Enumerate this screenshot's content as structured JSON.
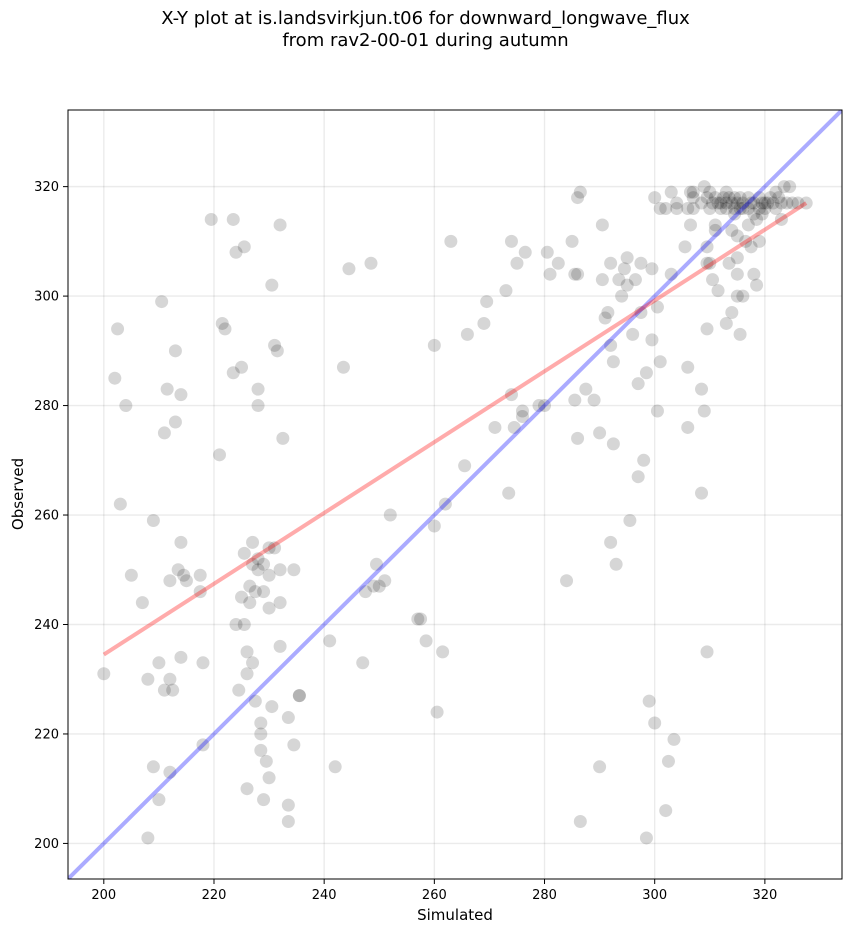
{
  "chart_data": {
    "type": "scatter",
    "title_line1": "X-Y plot at is.landsvirkjun.t06 for downward_longwave_flux",
    "title_line2": "from rav2-00-01 during autumn",
    "xlabel": "Simulated",
    "ylabel": "Observed",
    "xlim": [
      193.5,
      334
    ],
    "ylim": [
      193.5,
      334
    ],
    "xticks": [
      200,
      220,
      240,
      260,
      280,
      300,
      320
    ],
    "yticks": [
      200,
      220,
      240,
      260,
      280,
      300,
      320
    ],
    "grid": true,
    "colors": {
      "points": "#000000",
      "regression": "#ff0000",
      "one_to_one": "#0000ff"
    },
    "regression_line": {
      "x": [
        200,
        327.5
      ],
      "y": [
        234.5,
        317
      ]
    },
    "one_to_one_line": {
      "x": [
        193.5,
        334
      ],
      "y": [
        193.5,
        334
      ]
    },
    "points": [
      [
        200,
        231
      ],
      [
        202,
        285
      ],
      [
        202.5,
        294
      ],
      [
        203,
        262
      ],
      [
        204,
        280
      ],
      [
        205,
        249
      ],
      [
        207,
        244
      ],
      [
        208,
        230
      ],
      [
        208,
        201
      ],
      [
        209,
        259
      ],
      [
        209,
        214
      ],
      [
        210,
        233
      ],
      [
        210,
        208
      ],
      [
        210.5,
        299
      ],
      [
        211,
        228
      ],
      [
        211,
        275
      ],
      [
        211.5,
        283
      ],
      [
        212,
        230
      ],
      [
        212,
        213
      ],
      [
        212,
        248
      ],
      [
        212.5,
        228
      ],
      [
        213,
        290
      ],
      [
        213,
        277
      ],
      [
        213.5,
        250
      ],
      [
        214,
        282
      ],
      [
        214,
        255
      ],
      [
        214,
        234
      ],
      [
        214.5,
        249
      ],
      [
        215,
        248
      ],
      [
        217.5,
        246
      ],
      [
        217.5,
        249
      ],
      [
        218,
        233
      ],
      [
        218,
        218
      ],
      [
        219.5,
        314
      ],
      [
        221,
        271
      ],
      [
        221.5,
        295
      ],
      [
        222,
        294
      ],
      [
        223.5,
        286
      ],
      [
        223.5,
        314
      ],
      [
        224,
        240
      ],
      [
        224,
        308
      ],
      [
        224.5,
        228
      ],
      [
        225,
        287
      ],
      [
        225,
        245
      ],
      [
        225.5,
        253
      ],
      [
        225.5,
        240
      ],
      [
        225.5,
        309
      ],
      [
        226,
        231
      ],
      [
        226,
        235
      ],
      [
        226,
        210
      ],
      [
        226.5,
        244
      ],
      [
        226.5,
        247
      ],
      [
        227,
        251
      ],
      [
        227,
        255
      ],
      [
        227,
        233
      ],
      [
        227.5,
        246
      ],
      [
        227.5,
        226
      ],
      [
        228,
        250
      ],
      [
        228,
        252
      ],
      [
        228,
        283
      ],
      [
        228,
        280
      ],
      [
        228.5,
        222
      ],
      [
        228.5,
        220
      ],
      [
        228.5,
        217
      ],
      [
        229,
        246
      ],
      [
        229,
        208
      ],
      [
        229,
        251
      ],
      [
        229.5,
        215
      ],
      [
        230,
        212
      ],
      [
        230,
        249
      ],
      [
        230,
        243
      ],
      [
        230,
        254
      ],
      [
        230.5,
        302
      ],
      [
        230.5,
        225
      ],
      [
        231,
        291
      ],
      [
        231,
        254
      ],
      [
        231.5,
        290
      ],
      [
        232,
        250
      ],
      [
        232,
        244
      ],
      [
        232,
        236
      ],
      [
        232,
        313
      ],
      [
        232.5,
        274
      ],
      [
        233.5,
        223
      ],
      [
        233.5,
        207
      ],
      [
        233.5,
        204
      ],
      [
        234.5,
        250
      ],
      [
        234.5,
        218
      ],
      [
        235.5,
        227
      ],
      [
        235.5,
        227
      ],
      [
        241,
        237
      ],
      [
        242,
        214
      ],
      [
        243.5,
        287
      ],
      [
        244.5,
        305
      ],
      [
        247,
        233
      ],
      [
        247.5,
        246
      ],
      [
        248.5,
        306
      ],
      [
        249,
        247
      ],
      [
        249.5,
        251
      ],
      [
        250,
        247
      ],
      [
        251,
        248
      ],
      [
        252,
        260
      ],
      [
        257,
        241
      ],
      [
        257.5,
        241
      ],
      [
        258.5,
        237
      ],
      [
        260,
        291
      ],
      [
        260,
        258
      ],
      [
        260.5,
        224
      ],
      [
        261.5,
        235
      ],
      [
        262,
        262
      ],
      [
        263,
        310
      ],
      [
        265.5,
        269
      ],
      [
        266,
        293
      ],
      [
        269,
        295
      ],
      [
        269.5,
        299
      ],
      [
        271,
        276
      ],
      [
        273,
        301
      ],
      [
        273.5,
        264
      ],
      [
        274,
        310
      ],
      [
        274,
        282
      ],
      [
        274.5,
        276
      ],
      [
        275,
        306
      ],
      [
        276,
        278
      ],
      [
        276,
        279
      ],
      [
        276.5,
        308
      ],
      [
        279,
        280
      ],
      [
        280,
        280
      ],
      [
        280.5,
        308
      ],
      [
        281,
        304
      ],
      [
        282.5,
        306
      ],
      [
        284,
        248
      ],
      [
        285,
        310
      ],
      [
        285.5,
        281
      ],
      [
        285.5,
        304
      ],
      [
        286,
        274
      ],
      [
        286,
        304
      ],
      [
        286,
        318
      ],
      [
        286.5,
        319
      ],
      [
        286.5,
        204
      ],
      [
        287.5,
        283
      ],
      [
        289,
        281
      ],
      [
        290,
        275
      ],
      [
        290,
        214
      ],
      [
        290.5,
        313
      ],
      [
        290.5,
        303
      ],
      [
        291,
        296
      ],
      [
        291.5,
        297
      ],
      [
        292,
        255
      ],
      [
        292,
        306
      ],
      [
        292,
        291
      ],
      [
        292.5,
        288
      ],
      [
        292.5,
        273
      ],
      [
        293,
        251
      ],
      [
        293.5,
        303
      ],
      [
        294,
        300
      ],
      [
        294.5,
        305
      ],
      [
        295,
        307
      ],
      [
        295,
        302
      ],
      [
        295.5,
        259
      ],
      [
        296,
        293
      ],
      [
        296.5,
        303
      ],
      [
        297,
        267
      ],
      [
        297,
        284
      ],
      [
        297.5,
        306
      ],
      [
        297.5,
        297
      ],
      [
        298,
        270
      ],
      [
        298.5,
        286
      ],
      [
        298.5,
        201
      ],
      [
        299,
        226
      ],
      [
        299.5,
        305
      ],
      [
        299.5,
        292
      ],
      [
        300,
        318
      ],
      [
        300,
        222
      ],
      [
        300.5,
        298
      ],
      [
        300.5,
        279
      ],
      [
        301,
        288
      ],
      [
        301,
        316
      ],
      [
        302,
        316
      ],
      [
        302,
        206
      ],
      [
        302.5,
        215
      ],
      [
        303,
        319
      ],
      [
        303,
        304
      ],
      [
        303.5,
        219
      ],
      [
        304,
        317
      ],
      [
        304,
        316
      ],
      [
        305.5,
        309
      ],
      [
        306,
        316
      ],
      [
        306,
        276
      ],
      [
        306,
        287
      ],
      [
        306.5,
        319
      ],
      [
        306.5,
        313
      ],
      [
        307,
        318
      ],
      [
        307,
        316
      ],
      [
        307,
        319
      ],
      [
        308.5,
        283
      ],
      [
        308.5,
        264
      ],
      [
        308.5,
        317
      ],
      [
        309,
        279
      ],
      [
        309,
        320
      ],
      [
        309.5,
        318
      ],
      [
        309.5,
        309
      ],
      [
        309.5,
        306
      ],
      [
        309.5,
        294
      ],
      [
        309.5,
        235
      ],
      [
        310,
        316
      ],
      [
        310,
        306
      ],
      [
        310,
        319
      ],
      [
        310.5,
        303
      ],
      [
        310.5,
        317
      ],
      [
        311,
        318
      ],
      [
        311,
        312
      ],
      [
        311,
        313
      ],
      [
        311.5,
        317
      ],
      [
        311.5,
        301
      ],
      [
        312,
        317
      ],
      [
        312,
        316
      ],
      [
        312.5,
        318
      ],
      [
        313,
        319
      ],
      [
        313,
        317
      ],
      [
        313,
        316
      ],
      [
        313,
        295
      ],
      [
        313.5,
        318
      ],
      [
        313.5,
        306
      ],
      [
        314,
        317
      ],
      [
        314,
        297
      ],
      [
        314,
        312
      ],
      [
        314.5,
        318
      ],
      [
        314.5,
        315
      ],
      [
        314.5,
        316
      ],
      [
        315,
        311
      ],
      [
        315,
        317
      ],
      [
        315,
        300
      ],
      [
        315,
        307
      ],
      [
        315,
        304
      ],
      [
        315.5,
        293
      ],
      [
        315.5,
        316
      ],
      [
        315.5,
        318
      ],
      [
        316,
        300
      ],
      [
        316,
        317
      ],
      [
        316,
        316
      ],
      [
        316.5,
        310
      ],
      [
        317,
        318
      ],
      [
        317,
        316
      ],
      [
        317,
        313
      ],
      [
        317.5,
        317
      ],
      [
        317.5,
        309
      ],
      [
        318,
        315
      ],
      [
        318,
        304
      ],
      [
        318,
        317
      ],
      [
        318.5,
        302
      ],
      [
        318.5,
        314
      ],
      [
        319,
        310
      ],
      [
        319,
        316
      ],
      [
        319,
        318
      ],
      [
        319.5,
        317
      ],
      [
        319.5,
        315
      ],
      [
        320,
        316
      ],
      [
        320,
        317
      ],
      [
        320.5,
        317
      ],
      [
        321,
        318
      ],
      [
        321.5,
        317
      ],
      [
        322,
        319
      ],
      [
        322,
        316
      ],
      [
        322.5,
        318
      ],
      [
        323,
        317
      ],
      [
        323,
        314
      ],
      [
        323.5,
        320
      ],
      [
        324,
        317
      ],
      [
        324.5,
        320
      ],
      [
        325,
        317
      ],
      [
        326,
        317
      ],
      [
        327.5,
        317
      ]
    ]
  }
}
